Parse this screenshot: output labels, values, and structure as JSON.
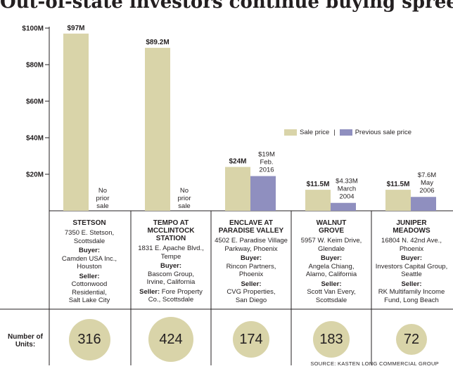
{
  "chart_data": {
    "type": "bar",
    "title": "Out-of-state investors continue buying spree",
    "source": "SOURCE: KASTEN LONG COMMERCIAL GROUP",
    "units_label": "Number of Units:",
    "ylim": [
      0,
      100
    ],
    "yticks": [
      "$100M",
      "$80M",
      "$60M",
      "$40M",
      "$20M"
    ],
    "ytick_values": [
      100,
      80,
      60,
      40,
      20
    ],
    "legend": {
      "placement": "right",
      "sale": "Sale price",
      "sep": "|",
      "previous": "Previous sale price"
    },
    "colors": {
      "sale": "#d9d4a9",
      "previous": "#8f8fbf",
      "line": "#231f20"
    },
    "series": [
      {
        "name": "Sale price",
        "values": [
          97,
          89.2,
          24,
          11.5,
          11.5
        ]
      },
      {
        "name": "Previous sale price",
        "values": [
          null,
          null,
          19,
          4.33,
          7.6
        ]
      }
    ],
    "properties": [
      {
        "name_lines": [
          "STETSON"
        ],
        "sale_label": "$97M",
        "prev_lines": [
          "No",
          "prior",
          "sale"
        ],
        "address": [
          "7350 E. Stetson,",
          "Scottsdale"
        ],
        "buyer_label": "Buyer:",
        "buyer": [
          "Camden USA Inc.,",
          "Houston"
        ],
        "seller_label": "Seller:",
        "seller": [
          "Cottonwood",
          "Residential,",
          "Salt Lake City"
        ],
        "seller_inline": false,
        "units": "316"
      },
      {
        "name_lines": [
          "TEMPO AT",
          "MCCLINTOCK",
          "STATION"
        ],
        "sale_label": "$89.2M",
        "prev_lines": [
          "No",
          "prior",
          "sale"
        ],
        "address": [
          "1831 E. Apache Blvd.,",
          "Tempe"
        ],
        "buyer_label": "Buyer:",
        "buyer": [
          "Bascom Group,",
          "Irvine, California"
        ],
        "seller_label": "Seller:",
        "seller": [
          "Fore Property",
          "Co., Scottsdale"
        ],
        "seller_inline": true,
        "units": "424"
      },
      {
        "name_lines": [
          "ENCLAVE AT",
          "PARADISE VALLEY"
        ],
        "sale_label": "$24M",
        "prev_lines": [
          "$19M",
          "Feb.",
          "2016"
        ],
        "address": [
          "4502 E. Paradise Village",
          "Parkway, Phoenix"
        ],
        "buyer_label": "Buyer:",
        "buyer": [
          "Rincon Partners,",
          "Phoenix"
        ],
        "seller_label": "Seller:",
        "seller": [
          "CVG Properties,",
          "San Diego"
        ],
        "seller_inline": false,
        "units": "174"
      },
      {
        "name_lines": [
          "WALNUT",
          "GROVE"
        ],
        "sale_label": "$11.5M",
        "prev_lines": [
          "$4.33M",
          "March",
          "2004"
        ],
        "address": [
          "5957 W. Keim Drive,",
          "Glendale"
        ],
        "buyer_label": "Buyer:",
        "buyer": [
          "Angela Chiang,",
          "Alamo, California"
        ],
        "seller_label": "Seller:",
        "seller": [
          "Scott Van Every,",
          "Scottsdale"
        ],
        "seller_inline": false,
        "units": "183"
      },
      {
        "name_lines": [
          "JUNIPER",
          "MEADOWS"
        ],
        "sale_label": "$11.5M",
        "prev_lines": [
          "$7.6M",
          "May",
          "2006"
        ],
        "address": [
          "16804 N. 42nd Ave.,",
          "Phoenix"
        ],
        "buyer_label": "Buyer:",
        "buyer": [
          "Investors Capital Group,",
          "Seattle"
        ],
        "seller_label": "Seller:",
        "seller": [
          "RK Multifamily Income",
          "Fund, Long Beach"
        ],
        "seller_inline": false,
        "units": "72"
      }
    ]
  }
}
